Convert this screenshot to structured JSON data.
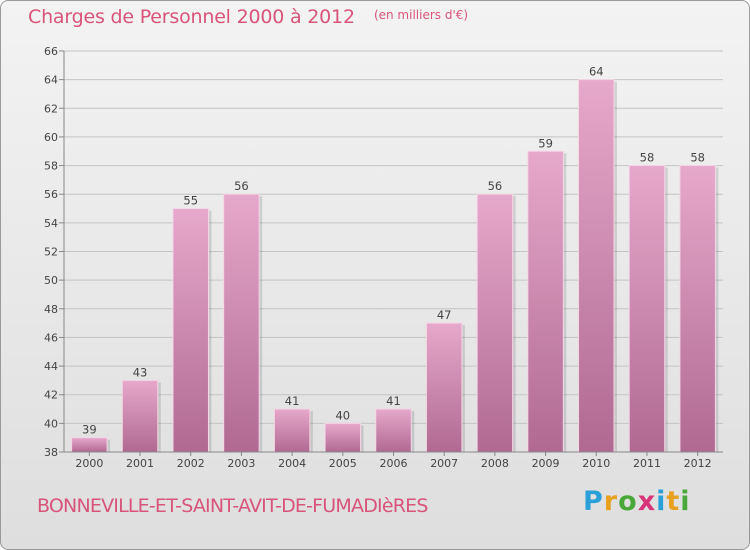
{
  "chart_data": {
    "type": "bar",
    "title": "Charges de Personnel 2000 à 2012",
    "subtitle": "(en milliers d'€)",
    "categories": [
      "2000",
      "2001",
      "2002",
      "2003",
      "2004",
      "2005",
      "2006",
      "2007",
      "2008",
      "2009",
      "2010",
      "2011",
      "2012"
    ],
    "values": [
      39,
      43,
      55,
      56,
      41,
      40,
      41,
      47,
      56,
      59,
      64,
      58,
      58
    ],
    "ylim": [
      38,
      66
    ],
    "yticks": [
      38,
      40,
      42,
      44,
      46,
      48,
      50,
      52,
      54,
      56,
      58,
      60,
      62,
      64,
      66
    ],
    "grid": true,
    "bar_color": "#c56b96",
    "title_color": "#d8547a"
  },
  "footer": {
    "commune": "BONNEVILLE-ET-SAINT-AVIT-DE-FUMADIèRES",
    "logo_letters": [
      "P",
      "r",
      "o",
      "x",
      "i",
      "t",
      "i"
    ],
    "logo_colors": [
      "#2aa0d8",
      "#e8a020",
      "#4aa83a",
      "#d8347a",
      "#2aa0d8",
      "#e8a020",
      "#4aa83a"
    ]
  }
}
